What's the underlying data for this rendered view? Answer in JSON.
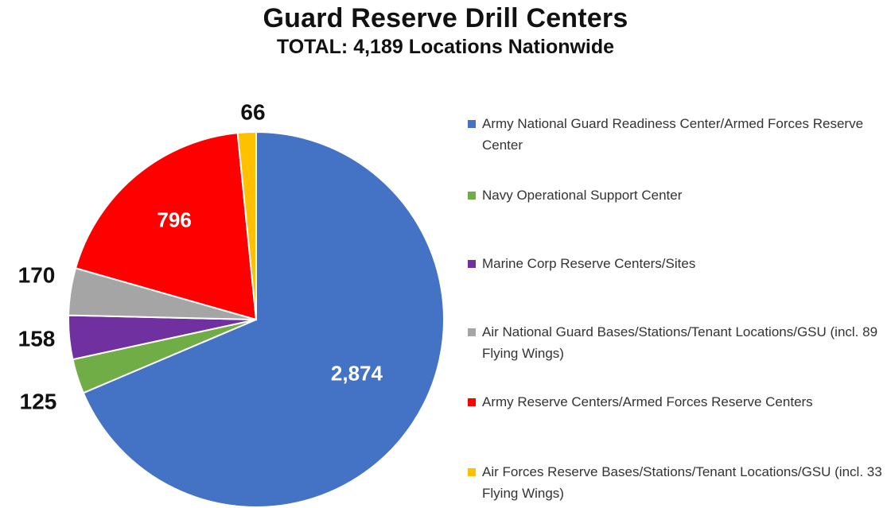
{
  "chart_data": {
    "type": "pie",
    "title": "Guard Reserve Drill Centers",
    "subtitle": "TOTAL: 4,189 Locations Nationwide",
    "legend_position": "right",
    "slices": [
      {
        "name": "Army National Guard Readiness Center/Armed Forces Reserve Center",
        "value": 2874,
        "label": "2,874",
        "color": "#4472C4",
        "label_color": "#ffffff",
        "label_placement": "inside"
      },
      {
        "name": "Navy Operational Support Center",
        "value": 125,
        "label": "125",
        "color": "#70AD47",
        "label_color": "#111111",
        "label_placement": "outside"
      },
      {
        "name": "Marine Corp Reserve Centers/Sites",
        "value": 158,
        "label": "158",
        "color": "#7030A0",
        "label_color": "#111111",
        "label_placement": "outside"
      },
      {
        "name": "Air National Guard Bases/Stations/Tenant Locations/GSU (incl. 89 Flying Wings)",
        "value": 170,
        "label": "170",
        "color": "#A5A5A5",
        "label_color": "#111111",
        "label_placement": "outside"
      },
      {
        "name": "Army Reserve Centers/Armed Forces Reserve Centers",
        "value": 796,
        "label": "796",
        "color": "#FF0000",
        "label_color": "#ffffff",
        "label_placement": "inside"
      },
      {
        "name": "Air Forces Reserve Bases/Stations/Tenant Locations/GSU (incl. 33 Flying Wings)",
        "value": 66,
        "label": "66",
        "color": "#FFC000",
        "label_color": "#111111",
        "label_placement": "outside"
      }
    ]
  }
}
